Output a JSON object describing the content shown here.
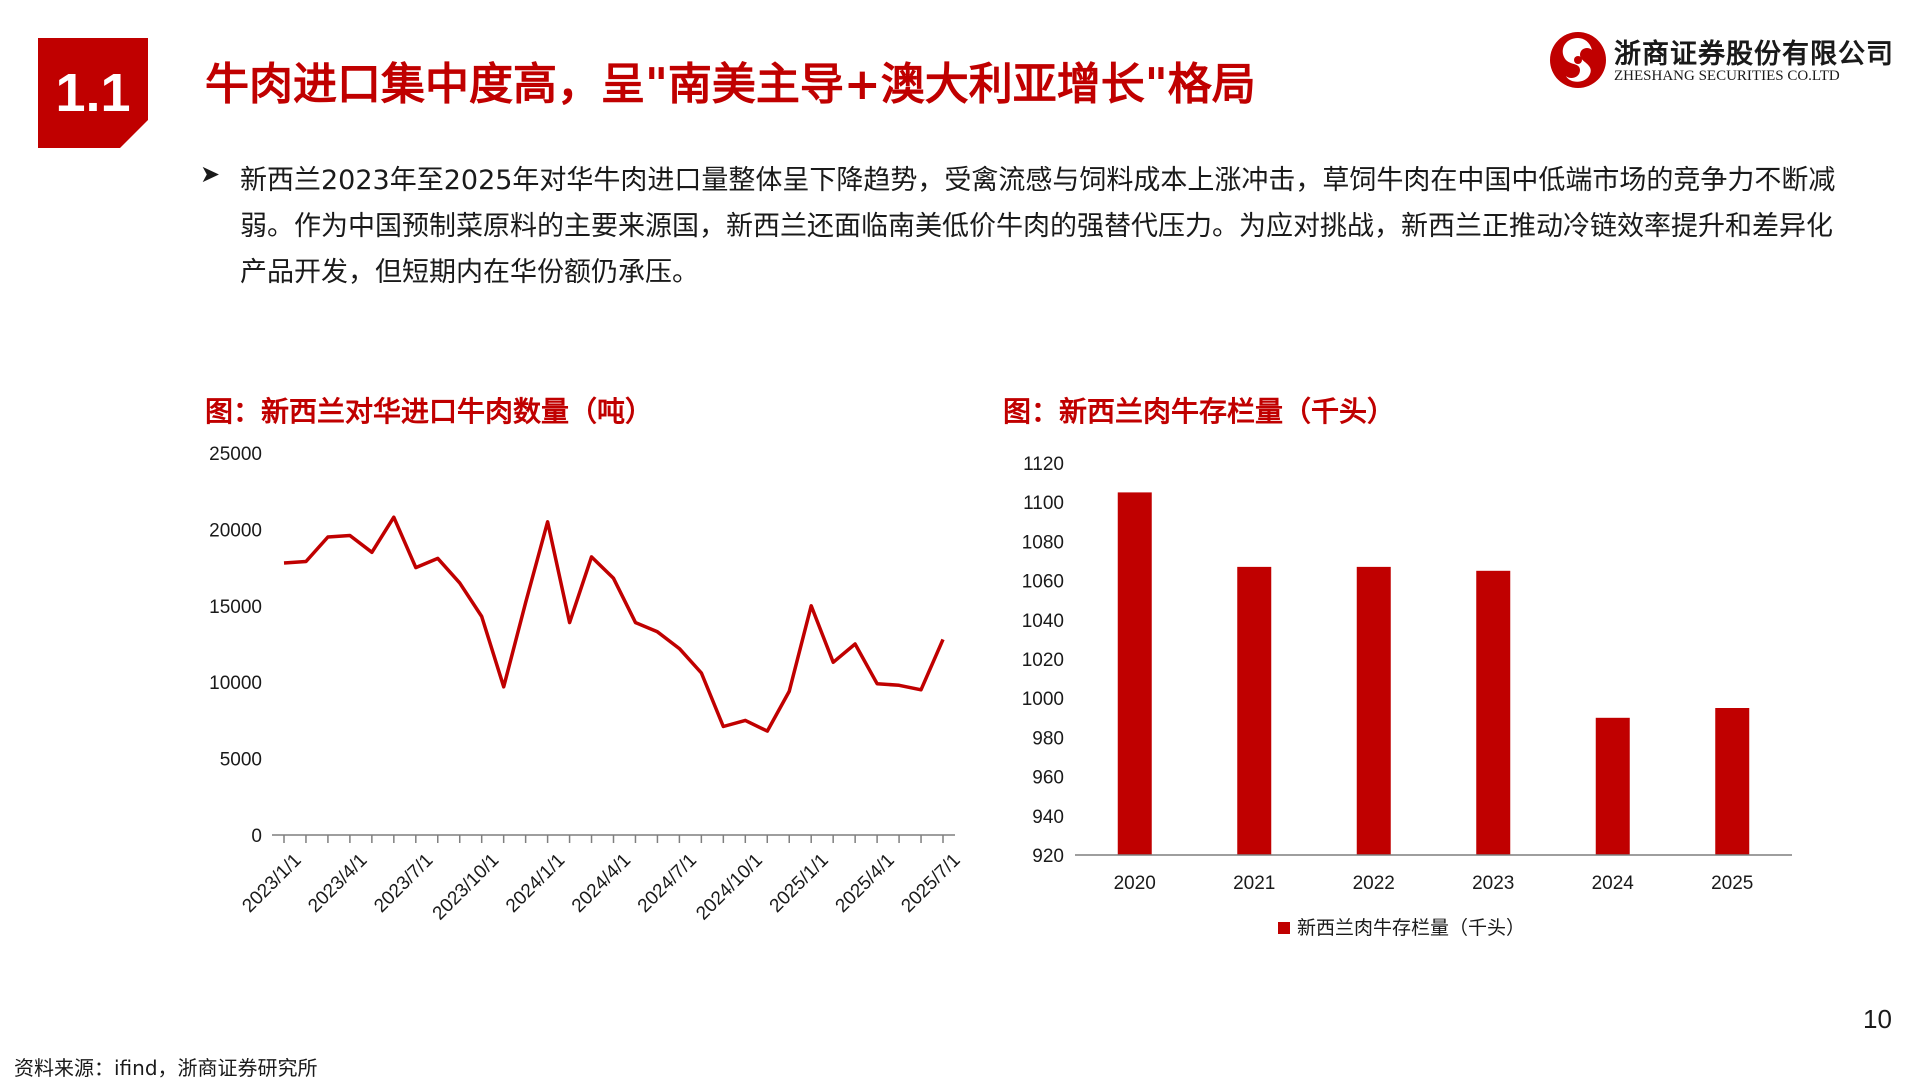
{
  "header": {
    "section_number": "1.1",
    "title": "牛肉进口集中度高，呈\"南美主导+澳大利亚增长\"格局"
  },
  "brand": {
    "name_cn": "浙商证券股份有限公司",
    "name_en": "ZHESHANG SECURITIES CO.LTD",
    "accent_color": "#c00000"
  },
  "bullet": {
    "icon": "arrow-bullet-icon",
    "text": "新西兰2023年至2025年对华牛肉进口量整体呈下降趋势，受禽流感与饲料成本上涨冲击，草饲牛肉在中国中低端市场的竞争力不断减弱。作为中国预制菜原料的主要来源国，新西兰还面临南美低价牛肉的强替代压力。为应对挑战，新西兰正推动冷链效率提升和差异化产品开发，但短期内在华份额仍承压。"
  },
  "charts": {
    "left_title": "图：新西兰对华进口牛肉数量（吨）",
    "right_title": "图：新西兰肉牛存栏量（千头）"
  },
  "chart_data": [
    {
      "type": "line",
      "title": "图：新西兰对华进口牛肉数量（吨）",
      "color": "#c00000",
      "x": [
        "2023/1/1",
        "2023/2/1",
        "2023/3/1",
        "2023/4/1",
        "2023/5/1",
        "2023/6/1",
        "2023/7/1",
        "2023/8/1",
        "2023/9/1",
        "2023/10/1",
        "2023/11/1",
        "2023/12/1",
        "2024/1/1",
        "2024/2/1",
        "2024/3/1",
        "2024/4/1",
        "2024/5/1",
        "2024/6/1",
        "2024/7/1",
        "2024/8/1",
        "2024/9/1",
        "2024/10/1",
        "2024/11/1",
        "2024/12/1",
        "2025/1/1",
        "2025/2/1",
        "2025/3/1",
        "2025/4/1",
        "2025/5/1",
        "2025/6/1",
        "2025/7/1"
      ],
      "values": [
        17800,
        17900,
        19500,
        19600,
        18500,
        20800,
        17500,
        18100,
        16500,
        14300,
        9700,
        15200,
        20500,
        13900,
        18200,
        16800,
        13900,
        13300,
        12200,
        10600,
        7100,
        7500,
        6800,
        9400,
        15000,
        11300,
        12500,
        9900,
        9800,
        9500,
        12800
      ],
      "x_tick_labels": [
        "2023/1/1",
        "2023/4/1",
        "2023/7/1",
        "2023/10/1",
        "2024/1/1",
        "2024/4/1",
        "2024/7/1",
        "2024/10/1",
        "2025/1/1",
        "2025/4/1",
        "2025/7/1"
      ],
      "y_ticks": [
        0,
        5000,
        10000,
        15000,
        20000,
        25000
      ],
      "ylim": [
        0,
        25000
      ],
      "grid": false,
      "legend": "none"
    },
    {
      "type": "bar",
      "title": "图：新西兰肉牛存栏量（千头）",
      "color": "#c00000",
      "categories": [
        "2020",
        "2021",
        "2022",
        "2023",
        "2024",
        "2025"
      ],
      "series": [
        {
          "name": "新西兰肉牛存栏量（千头）",
          "values": [
            1105,
            1067,
            1067,
            1065,
            990,
            995
          ]
        }
      ],
      "y_ticks": [
        920,
        940,
        960,
        980,
        1000,
        1020,
        1040,
        1060,
        1080,
        1100,
        1120
      ],
      "ylim": [
        920,
        1120
      ],
      "grid": false,
      "legend": "bottom"
    }
  ],
  "footer": {
    "page_number": "10",
    "source": "资料来源：ifind，浙商证券研究所"
  }
}
